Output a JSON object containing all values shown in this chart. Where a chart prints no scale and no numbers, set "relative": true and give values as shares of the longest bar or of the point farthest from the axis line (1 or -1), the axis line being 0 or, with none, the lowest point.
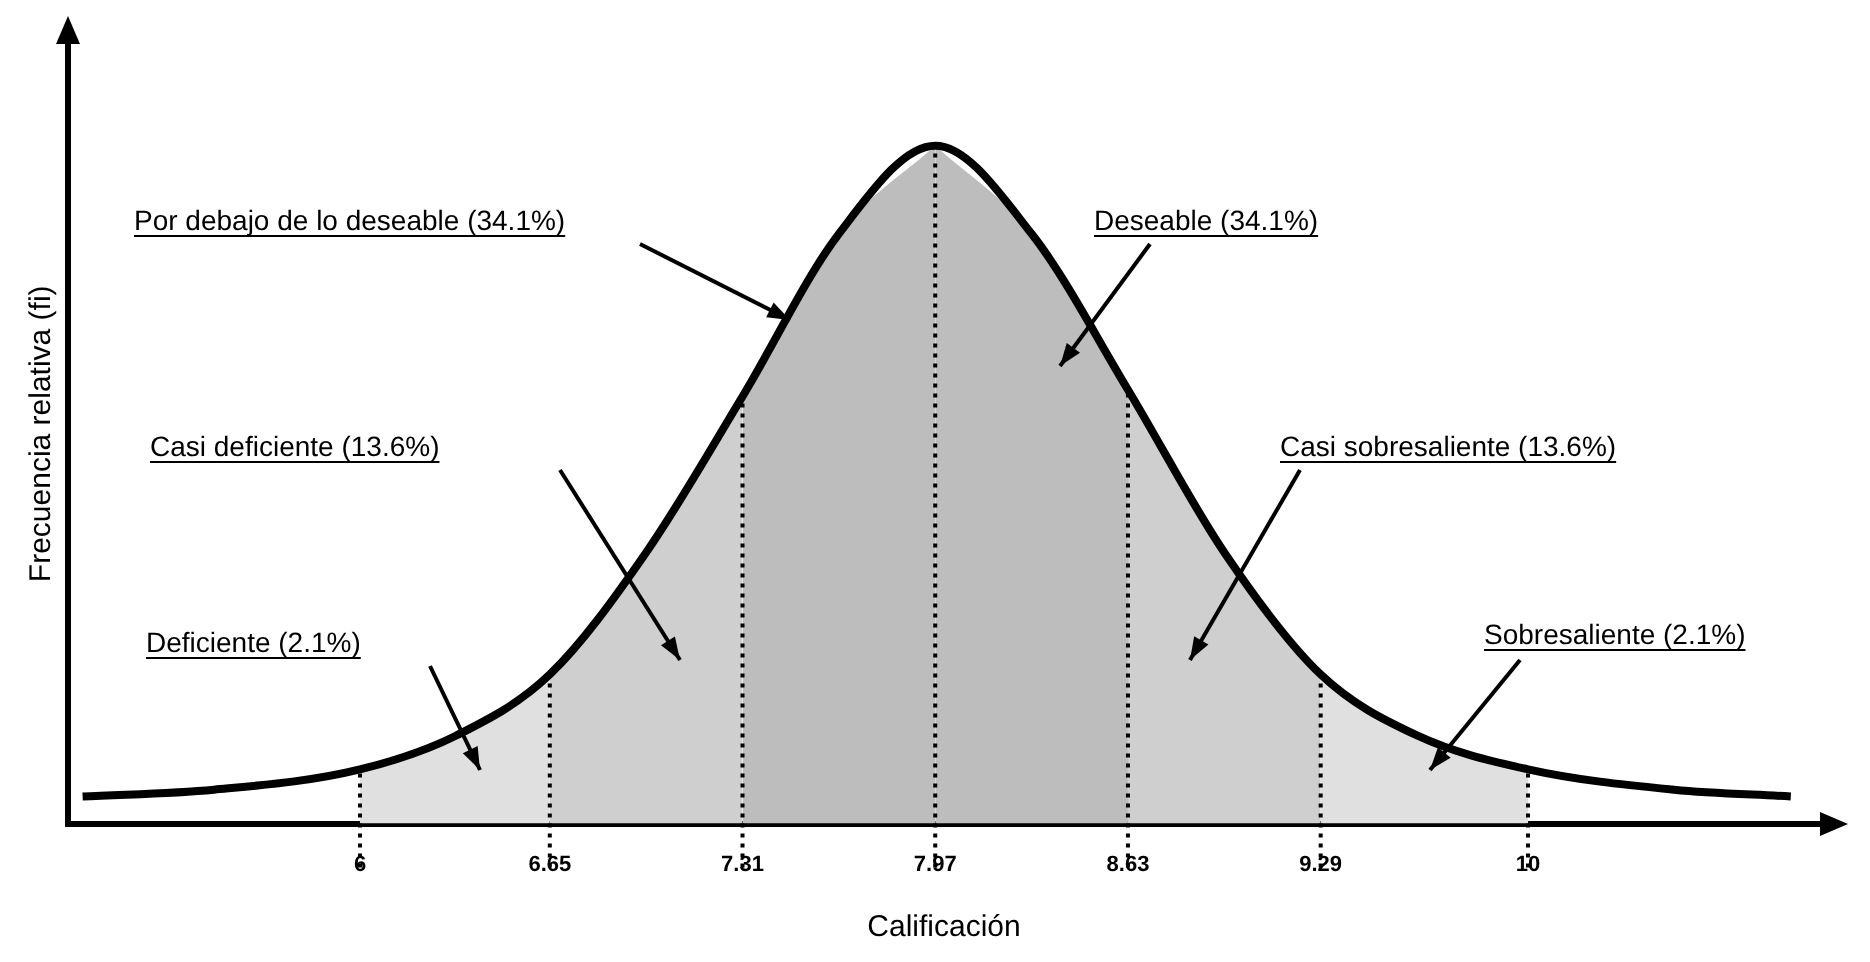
{
  "chart_data": {
    "type": "line",
    "relative": true,
    "xlabel": "Calificación",
    "ylabel": "Frecuencia relativa (fi)",
    "xlim": [
      5,
      11
    ],
    "xticks": [
      6,
      6.65,
      7.31,
      7.97,
      8.63,
      9.29,
      10
    ],
    "grid": false,
    "legend": false,
    "marker": "none",
    "series": [
      {
        "type": "line",
        "color": "#000000",
        "x": [
          5.05,
          5.5,
          6,
          6.33,
          6.65,
          6.98,
          7.31,
          7.64,
          7.97,
          8.3,
          8.63,
          8.96,
          9.29,
          9.62,
          10,
          10.5,
          10.9
        ],
        "values": [
          0.04,
          0.05,
          0.08,
          0.13,
          0.22,
          0.4,
          0.63,
          0.87,
          1,
          0.87,
          0.64,
          0.4,
          0.22,
          0.13,
          0.08,
          0.05,
          0.04
        ]
      },
      {
        "type": "area",
        "color": "#e0e0e0",
        "x": [
          6,
          6.33,
          6.65
        ],
        "values": [
          0.08,
          0.13,
          0.22
        ]
      },
      {
        "type": "area",
        "color": "#cfcfcf",
        "x": [
          6.65,
          6.98,
          7.31
        ],
        "values": [
          0.22,
          0.4,
          0.63
        ]
      },
      {
        "type": "area",
        "color": "#bdbdbd",
        "x": [
          7.31,
          7.64,
          7.97
        ],
        "values": [
          0.63,
          0.87,
          1
        ]
      },
      {
        "type": "area",
        "color": "#bdbdbd",
        "x": [
          7.97,
          8.3,
          8.63
        ],
        "values": [
          1,
          0.87,
          0.64
        ]
      },
      {
        "type": "area",
        "color": "#cfcfcf",
        "x": [
          8.63,
          8.96,
          9.29
        ],
        "values": [
          0.64,
          0.4,
          0.22
        ]
      },
      {
        "type": "area",
        "color": "#e0e0e0",
        "x": [
          9.29,
          9.62,
          10
        ],
        "values": [
          0.22,
          0.13,
          0.08
        ]
      }
    ],
    "ref_lines": [
      {
        "axis": "x",
        "value": 6,
        "color": "#000000",
        "line_style": "dotted"
      },
      {
        "axis": "x",
        "value": 6.65,
        "color": "#000000",
        "line_style": "dotted"
      },
      {
        "axis": "x",
        "value": 7.31,
        "color": "#000000",
        "line_style": "dotted"
      },
      {
        "axis": "x",
        "value": 7.97,
        "color": "#000000",
        "line_style": "dotted"
      },
      {
        "axis": "x",
        "value": 8.63,
        "color": "#000000",
        "line_style": "dotted"
      },
      {
        "axis": "x",
        "value": 9.29,
        "color": "#000000",
        "line_style": "dotted"
      },
      {
        "axis": "x",
        "value": 10,
        "color": "#000000",
        "line_style": "dotted"
      }
    ],
    "annotations": [
      "Por debajo de lo deseable (34.1%)",
      "Deseable (34.1%)",
      "Casi deficiente (13.6%)",
      "Casi sobresaliente (13.6%)",
      "Deficiente (2.1%)",
      "Sobresaliente (2.1%)"
    ]
  }
}
